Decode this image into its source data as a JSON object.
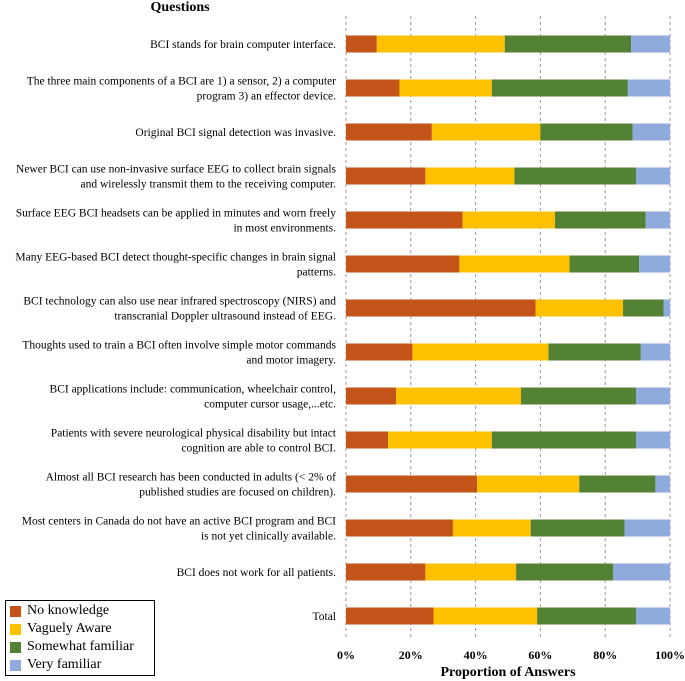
{
  "chart_data": {
    "type": "bar",
    "orientation": "horizontal",
    "stacked": "percent",
    "yaxis_title": "Questions",
    "xlabel": "Proportion of Answers",
    "xlim": [
      0,
      100
    ],
    "xticks": [
      "0%",
      "20%",
      "40%",
      "60%",
      "80%",
      "100%"
    ],
    "grid": "vertical dashed",
    "legend_position": "bottom-left",
    "categories": [
      [
        "BCI stands for brain computer interface."
      ],
      [
        "The three main components of a BCI are 1) a sensor, 2) a computer",
        "program 3) an effector device."
      ],
      [
        "Original BCI signal detection was invasive."
      ],
      [
        "Newer BCI can use non-invasive surface EEG to collect brain signals",
        "and wirelessly transmit them to the receiving computer."
      ],
      [
        "Surface EEG BCI headsets can be applied in minutes and worn freely",
        "in most environments."
      ],
      [
        "Many EEG-based BCI detect thought-specific changes in brain signal",
        "patterns."
      ],
      [
        "BCI technology can also use near infrared spectroscopy (NIRS) and",
        "transcranial Doppler ultrasound instead of EEG."
      ],
      [
        "Thoughts used to train a BCI often involve simple motor commands",
        "and motor imagery."
      ],
      [
        "BCI applications include:  communication, wheelchair control,",
        "computer cursor usage,...etc."
      ],
      [
        "Patients with severe neurological physical disability but intact",
        "cognition are able to control BCI."
      ],
      [
        "Almost all BCI research has been conducted in adults (<    2% of",
        "published studies are focused on children)."
      ],
      [
        "Most centers in Canada do not have an active BCI program and BCI",
        "is not yet clinically available."
      ],
      [
        "BCI does not work for all patients."
      ],
      [
        "Total"
      ]
    ],
    "series": [
      {
        "name": "No knowledge",
        "color": "#C5541B",
        "values": [
          9.5,
          16.5,
          26.5,
          24.5,
          36,
          35,
          58.5,
          20.5,
          15.5,
          13,
          40.5,
          33,
          24.5,
          27
        ]
      },
      {
        "name": "Vaguely Aware",
        "color": "#FFC000",
        "values": [
          39.5,
          28.5,
          33.5,
          27.5,
          28.5,
          34,
          27,
          42,
          38.5,
          32,
          31.5,
          24,
          28,
          32
        ]
      },
      {
        "name": "Somewhat familiar",
        "color": "#548235",
        "values": [
          39,
          42,
          28.5,
          37.5,
          28,
          21.5,
          12.5,
          28.5,
          35.5,
          44.5,
          23.5,
          29,
          30,
          30.5
        ]
      },
      {
        "name": "Very familiar",
        "color": "#8FAADC",
        "values": [
          12,
          13,
          11.5,
          10.5,
          7.5,
          9.5,
          2,
          9,
          10.5,
          10.5,
          4.5,
          14,
          17.5,
          10.5
        ]
      }
    ]
  }
}
